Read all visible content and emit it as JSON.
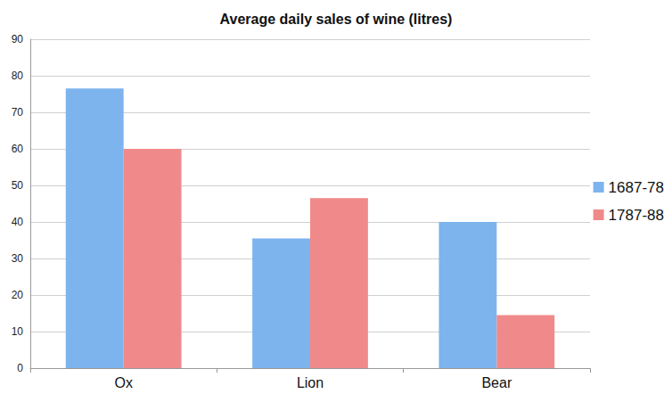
{
  "chart_data": {
    "type": "bar",
    "title": "Average daily sales of wine (litres)",
    "categories": [
      "Ox",
      "Lion",
      "Bear"
    ],
    "series": [
      {
        "name": "1687-78",
        "color": "#7db4ee",
        "values": [
          76.5,
          35.5,
          40
        ]
      },
      {
        "name": "1787-88",
        "color": "#f08a8a",
        "values": [
          60,
          46.5,
          14.5
        ]
      }
    ],
    "ylim": [
      0,
      90
    ],
    "yticks": [
      0,
      10,
      20,
      30,
      40,
      50,
      60,
      70,
      80,
      90
    ],
    "grid": true,
    "legend": "right"
  }
}
